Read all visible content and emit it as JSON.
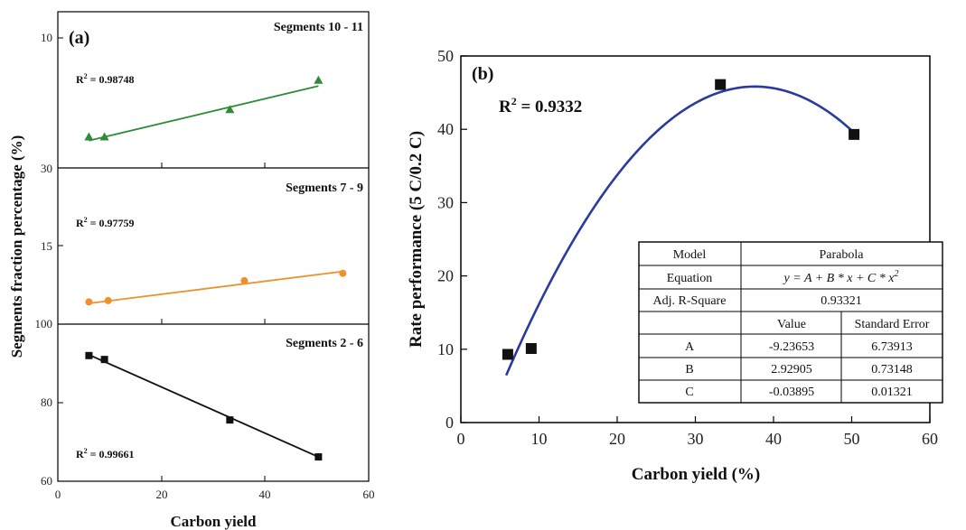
{
  "chart_data": [
    {
      "type": "scatter",
      "panel_label": "(a)",
      "xlabel": "Carbon yield",
      "ylabel": "Segments fraction percentage (%)",
      "xlim": [
        0,
        60
      ],
      "xticks": [
        "0",
        "20",
        "40",
        "60"
      ],
      "subplots": [
        {
          "title": "Segments 10 - 11",
          "r2_label": "R",
          "r2_value": " = 0.98748",
          "color": "#2e8b3a",
          "marker": "triangle",
          "ylim": [
            30,
            10
          ],
          "yticks": [
            "10",
            "30"
          ],
          "points": [
            {
              "x": 6.0,
              "y": 25.2
            },
            {
              "x": 9.0,
              "y": 25.2
            },
            {
              "x": 33.2,
              "y": 21.0
            },
            {
              "x": 50.3,
              "y": 16.5
            }
          ],
          "fit": [
            [
              6.0,
              25.8
            ],
            [
              50.3,
              17.4
            ]
          ]
        },
        {
          "title": "Segments 7 - 9",
          "r2_label": "R",
          "r2_value": " = 0.97759",
          "color": "#f0902a",
          "marker": "circle",
          "ylim": [
            100,
            15
          ],
          "yticks": [
            "15",
            "100"
          ],
          "points": [
            {
              "x": 6.0,
              "y": 76.0
            },
            {
              "x": 9.7,
              "y": 74.5
            },
            {
              "x": 36.0,
              "y": 53.0
            },
            {
              "x": 55.0,
              "y": 45.0
            }
          ],
          "fit": [
            [
              6.0,
              77.5
            ],
            [
              55.0,
              43.0
            ]
          ]
        },
        {
          "title": "Segments 2 - 6",
          "r2_label": "R",
          "r2_value": " = 0.99661",
          "color": "#111111",
          "marker": "square",
          "ylim": [
            60,
            100
          ],
          "yticks": [
            "60",
            "80"
          ],
          "points": [
            {
              "x": 6.0,
              "y": 92.0
            },
            {
              "x": 9.0,
              "y": 91.0
            },
            {
              "x": 33.2,
              "y": 75.6
            },
            {
              "x": 50.3,
              "y": 66.2
            }
          ],
          "fit": [
            [
              6.0,
              92.2
            ],
            [
              50.3,
              66.2
            ]
          ]
        }
      ]
    },
    {
      "type": "scatter",
      "panel_label": "(b)",
      "xlabel": "Carbon yield (%)",
      "ylabel": "Rate performance  (5 C/0.2 C)",
      "xlim": [
        0,
        60
      ],
      "ylim": [
        0,
        50
      ],
      "xticks": [
        "0",
        "10",
        "20",
        "30",
        "40",
        "50",
        "60"
      ],
      "yticks": [
        "0",
        "10",
        "20",
        "30",
        "40",
        "50"
      ],
      "r2_label": "R",
      "r2_value": " = 0.9332",
      "marker": "square",
      "points": [
        {
          "x": 6.0,
          "y": 9.3
        },
        {
          "x": 9.0,
          "y": 10.1
        },
        {
          "x": 33.2,
          "y": 46.1
        },
        {
          "x": 50.3,
          "y": 39.3
        }
      ],
      "fit_curve": {
        "A": -9.23653,
        "B": 2.92905,
        "C": -0.03895,
        "x_from": 5.8,
        "x_to": 50.3,
        "color": "#2b3a9e"
      },
      "table": {
        "model_label": "Model",
        "model_value": "Parabola",
        "equation_label": "Equation",
        "equation_value": "y = A + B * x + C * x",
        "equation_sup": "2",
        "adjr2_label": "Adj. R-Square",
        "adjr2_value": "0.93321",
        "col_value": "Value",
        "col_stderr": "Standard Error",
        "rows": [
          {
            "param": "A",
            "value": "-9.23653",
            "stderr": "6.73913"
          },
          {
            "param": "B",
            "value": "2.92905",
            "stderr": "0.73148"
          },
          {
            "param": "C",
            "value": "-0.03895",
            "stderr": "0.01321"
          }
        ]
      }
    }
  ]
}
